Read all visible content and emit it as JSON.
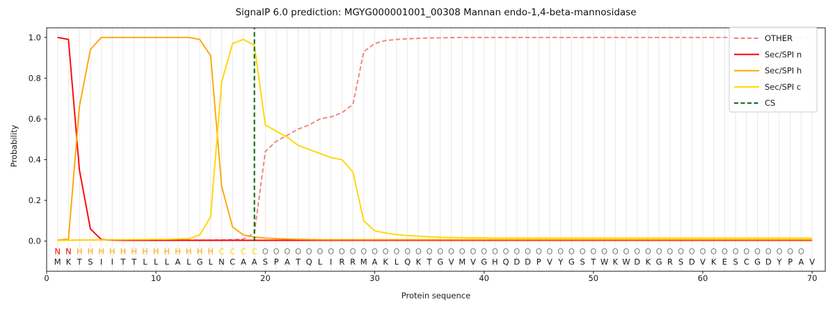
{
  "chart_data": {
    "type": "line",
    "title": "SignalP 6.0 prediction: MGYG000001001_00308 Mannan endo-1,4-beta-mannosidase",
    "xlabel": "Protein sequence",
    "ylabel": "Probability",
    "xlim": [
      0,
      71.2
    ],
    "ylim": [
      -0.148,
      1.047
    ],
    "xticks": [
      0,
      10,
      20,
      30,
      40,
      50,
      60,
      70
    ],
    "yticks": [
      0.0,
      0.2,
      0.4,
      0.6,
      0.8,
      1.0
    ],
    "ytick_labels": [
      "0.0",
      "0.2",
      "0.4",
      "0.6",
      "0.8",
      "1.0"
    ],
    "grid": {
      "vertical_per_residue": true,
      "horizontal": false,
      "color": "#e8e8e8"
    },
    "positions_start": 1,
    "sequence": "MKTSIITTLLLALGLNCAASPATQLIRRMAKLQKTGVMVGHQDDPVYGSTWKWDKGRSDVKESCGDYPAV",
    "states": "NNHHHHHHHHHHHHHCCCCOOOOOOOOOOOOOOOOOOOOOOOOOOOOOOOOOOOOOOOOOOOOOOOOOO",
    "state_colors": {
      "N": "#ff0000",
      "H": "#ffa500",
      "C": "#ffd700",
      "O": "#808080"
    },
    "residue_color": "#1a1a1a",
    "series": [
      {
        "name": "OTHER",
        "color": "#f08080",
        "style": "dashed",
        "values": [
          0.005,
          0.005,
          0.005,
          0.005,
          0.005,
          0.005,
          0.005,
          0.005,
          0.005,
          0.005,
          0.005,
          0.005,
          0.005,
          0.005,
          0.005,
          0.006,
          0.007,
          0.01,
          0.04,
          0.44,
          0.49,
          0.52,
          0.55,
          0.57,
          0.6,
          0.61,
          0.63,
          0.67,
          0.93,
          0.97,
          0.985,
          0.99,
          0.993,
          0.995,
          0.997,
          0.998,
          0.999,
          1.0,
          1.0,
          1.0,
          1.0,
          1.0,
          1.0,
          1.0,
          1.0,
          1.0,
          1.0,
          1.0,
          1.0,
          1.0,
          1.0,
          1.0,
          1.0,
          1.0,
          1.0,
          1.0,
          1.0,
          1.0,
          1.0,
          1.0,
          1.0,
          1.0,
          1.0,
          1.0,
          1.0,
          1.0,
          1.0,
          1.0,
          1.0,
          1.0
        ]
      },
      {
        "name": "Sec/SPI n",
        "color": "#ff0000",
        "style": "solid",
        "values": [
          1.0,
          0.99,
          0.35,
          0.06,
          0.008,
          0.005,
          0.004,
          0.004,
          0.004,
          0.004,
          0.004,
          0.004,
          0.004,
          0.004,
          0.004,
          0.004,
          0.004,
          0.004,
          0.004,
          0.004,
          0.004,
          0.004,
          0.004,
          0.004,
          0.004,
          0.004,
          0.004,
          0.004,
          0.004,
          0.004,
          0.004,
          0.004,
          0.004,
          0.004,
          0.004,
          0.004,
          0.004,
          0.004,
          0.004,
          0.004,
          0.004,
          0.004,
          0.004,
          0.004,
          0.004,
          0.004,
          0.004,
          0.004,
          0.004,
          0.004,
          0.004,
          0.004,
          0.004,
          0.004,
          0.004,
          0.004,
          0.004,
          0.004,
          0.004,
          0.004,
          0.004,
          0.004,
          0.004,
          0.004,
          0.004,
          0.004,
          0.004,
          0.004,
          0.004,
          0.004
        ]
      },
      {
        "name": "Sec/SPI h",
        "color": "#ffa500",
        "style": "solid",
        "values": [
          0.005,
          0.01,
          0.66,
          0.94,
          1.0,
          1.0,
          1.0,
          1.0,
          1.0,
          1.0,
          1.0,
          1.0,
          1.0,
          0.99,
          0.91,
          0.27,
          0.07,
          0.03,
          0.02,
          0.015,
          0.012,
          0.01,
          0.009,
          0.008,
          0.007,
          0.007,
          0.007,
          0.007,
          0.007,
          0.007,
          0.007,
          0.007,
          0.007,
          0.007,
          0.007,
          0.007,
          0.007,
          0.007,
          0.007,
          0.007,
          0.007,
          0.007,
          0.007,
          0.007,
          0.007,
          0.007,
          0.007,
          0.007,
          0.007,
          0.007,
          0.007,
          0.007,
          0.007,
          0.007,
          0.007,
          0.007,
          0.007,
          0.007,
          0.007,
          0.007,
          0.007,
          0.007,
          0.007,
          0.007,
          0.007,
          0.007,
          0.007,
          0.007,
          0.007,
          0.007
        ]
      },
      {
        "name": "Sec/SPI c",
        "color": "#ffd700",
        "style": "solid",
        "values": [
          0.003,
          0.004,
          0.005,
          0.006,
          0.006,
          0.007,
          0.007,
          0.008,
          0.008,
          0.009,
          0.009,
          0.01,
          0.012,
          0.03,
          0.12,
          0.78,
          0.97,
          0.99,
          0.96,
          0.57,
          0.54,
          0.51,
          0.47,
          0.45,
          0.43,
          0.41,
          0.4,
          0.34,
          0.1,
          0.05,
          0.04,
          0.032,
          0.027,
          0.024,
          0.021,
          0.019,
          0.018,
          0.017,
          0.016,
          0.016,
          0.015,
          0.015,
          0.015,
          0.015,
          0.015,
          0.015,
          0.015,
          0.015,
          0.015,
          0.015,
          0.015,
          0.015,
          0.015,
          0.015,
          0.015,
          0.015,
          0.015,
          0.015,
          0.015,
          0.015,
          0.015,
          0.015,
          0.015,
          0.015,
          0.015,
          0.015,
          0.015,
          0.015,
          0.015,
          0.015
        ]
      }
    ],
    "cs_marker": {
      "name": "CS",
      "color": "#006400",
      "style": "dashed",
      "position": 19
    },
    "legend": {
      "position": "upper-right",
      "entries": [
        "OTHER",
        "Sec/SPI n",
        "Sec/SPI h",
        "Sec/SPI c",
        "CS"
      ]
    }
  }
}
